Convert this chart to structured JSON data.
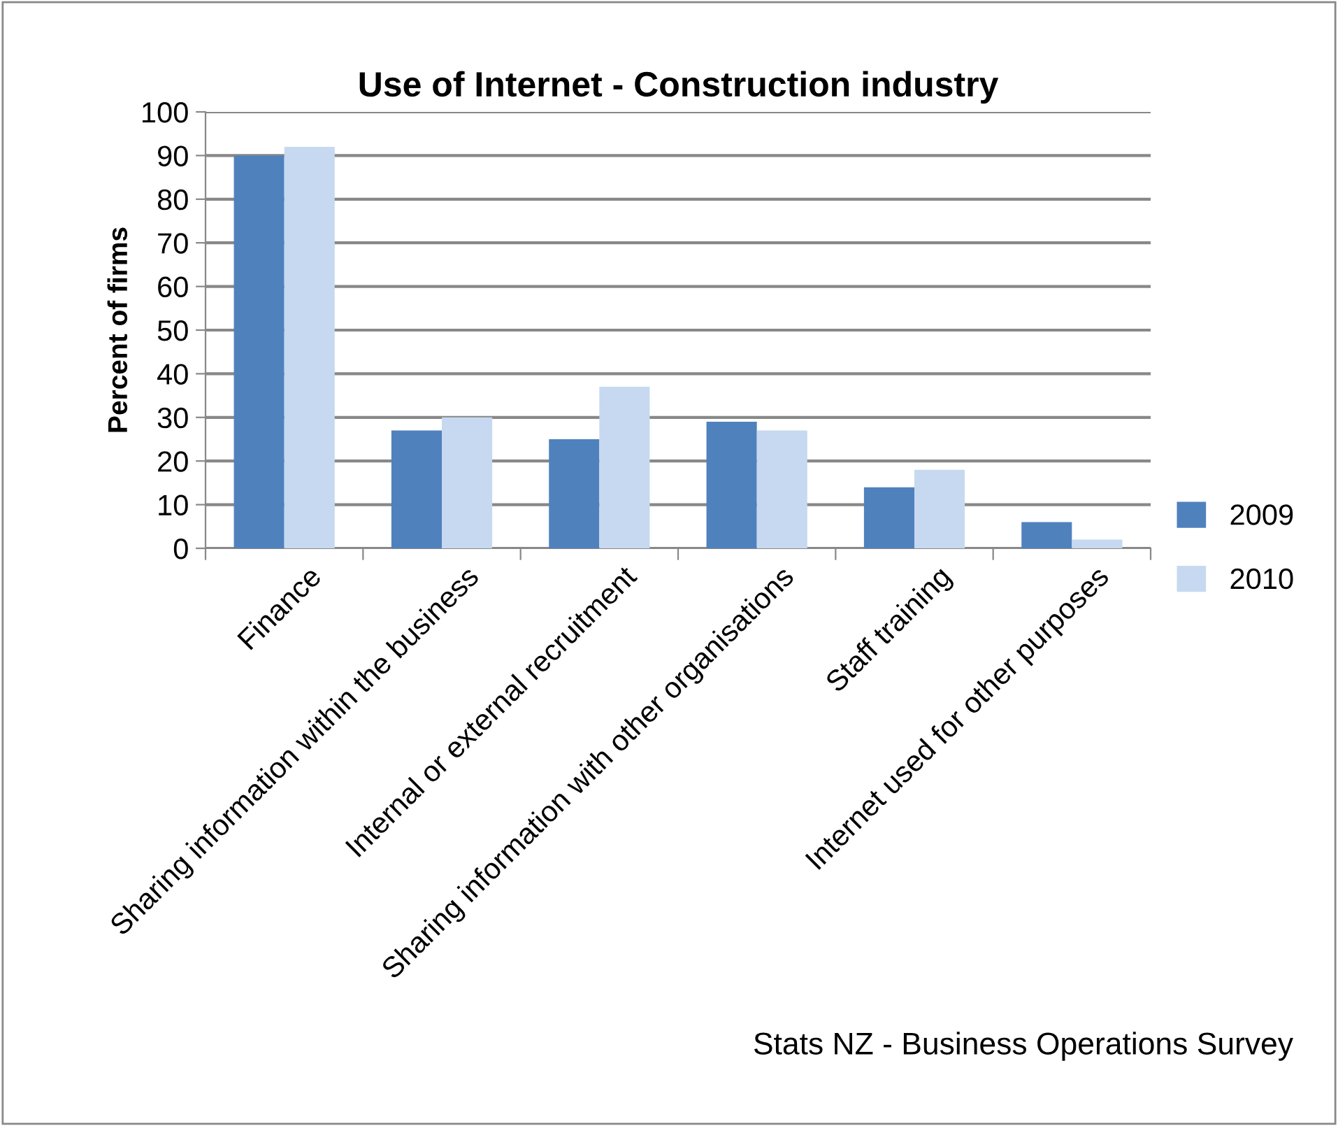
{
  "chart_data": {
    "type": "bar",
    "title": "Use of Internet - Construction industry",
    "ylabel": "Percent of firms",
    "categories": [
      "Finance",
      "Sharing information within the business",
      "Internal or external recruitment",
      "Sharing information with other organisations",
      "Staff training",
      "Internet used for other purposes"
    ],
    "series": [
      {
        "name": "2009",
        "color": "#4f81bd",
        "values": [
          90,
          27,
          25,
          29,
          14,
          6
        ]
      },
      {
        "name": "2010",
        "color": "#c6d9f0",
        "values": [
          92,
          30,
          37,
          27,
          18,
          2
        ]
      }
    ],
    "ylim": [
      0,
      100
    ],
    "yticks": [
      0,
      10,
      20,
      30,
      40,
      50,
      60,
      70,
      80,
      90,
      100
    ],
    "grid": "y",
    "legend": "right",
    "annotations": [
      "Stats NZ - Business Operations Survey"
    ]
  }
}
